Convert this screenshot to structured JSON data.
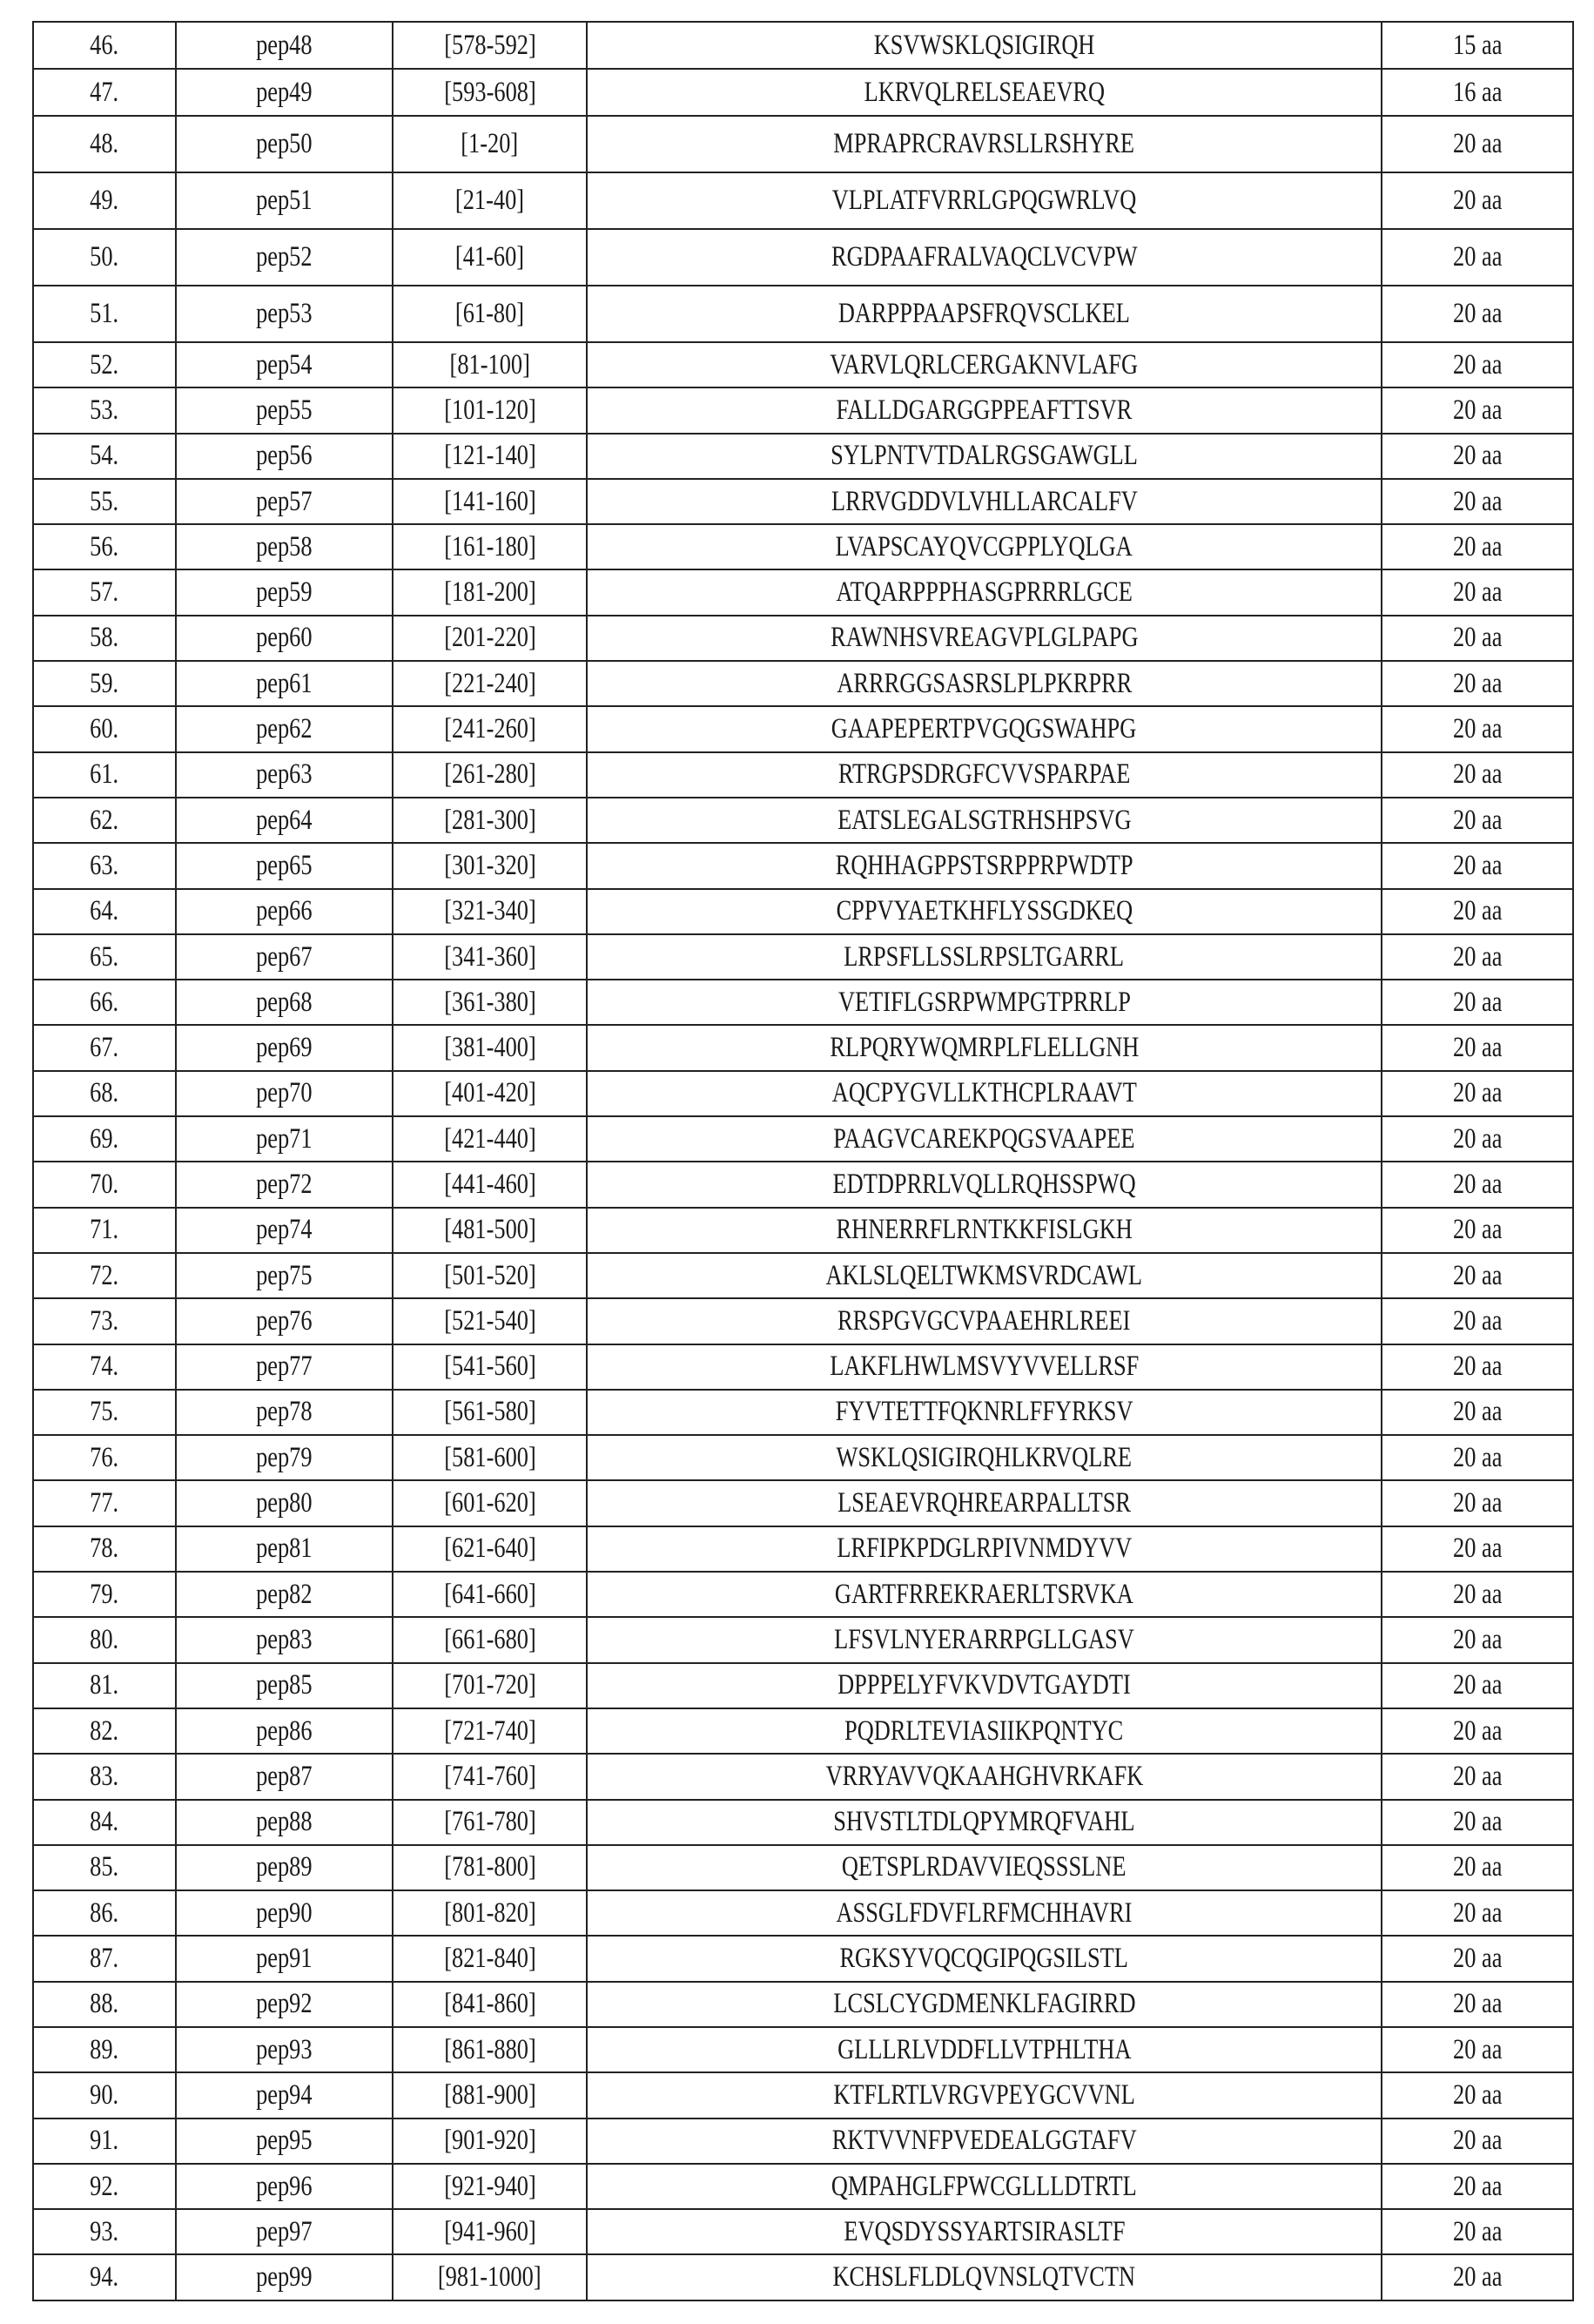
{
  "table": {
    "rows": [
      {
        "no": "46.",
        "name": "pep48",
        "range": "[578-592]",
        "seq": "KSVWSKLQSIGIRQH",
        "len": "15 aa"
      },
      {
        "no": "47.",
        "name": "pep49",
        "range": "[593-608]",
        "seq": "LKRVQLRELSEAEVRQ",
        "len": "16 aa"
      },
      {
        "no": "48.",
        "name": "pep50",
        "range": "[1-20]",
        "seq": "MPRAPRCRAVRSLLRSHYRE",
        "len": "20 aa"
      },
      {
        "no": "49.",
        "name": "pep51",
        "range": "[21-40]",
        "seq": "VLPLATFVRRLGPQGWRLVQ",
        "len": "20 aa"
      },
      {
        "no": "50.",
        "name": "pep52",
        "range": "[41-60]",
        "seq": "RGDPAAFRALVAQCLVCVPW",
        "len": "20 aa"
      },
      {
        "no": "51.",
        "name": "pep53",
        "range": "[61-80]",
        "seq": "DARPPPAAPSFRQVSCLKEL",
        "len": "20 aa"
      },
      {
        "no": "52.",
        "name": "pep54",
        "range": "[81-100]",
        "seq": "VARVLQRLCERGAKNVLAFG",
        "len": "20 aa"
      },
      {
        "no": "53.",
        "name": "pep55",
        "range": "[101-120]",
        "seq": "FALLDGARGGPPEAFTTSVR",
        "len": "20 aa"
      },
      {
        "no": "54.",
        "name": "pep56",
        "range": "[121-140]",
        "seq": "SYLPNTVTDALRGSGAWGLL",
        "len": "20 aa"
      },
      {
        "no": "55.",
        "name": "pep57",
        "range": "[141-160]",
        "seq": "LRRVGDDVLVHLLARCALFV",
        "len": "20 aa"
      },
      {
        "no": "56.",
        "name": "pep58",
        "range": "[161-180]",
        "seq": "LVAPSCAYQVCGPPLYQLGA",
        "len": "20 aa"
      },
      {
        "no": "57.",
        "name": "pep59",
        "range": "[181-200]",
        "seq": "ATQARPPPHASGPRRRLGCE",
        "len": "20 aa"
      },
      {
        "no": "58.",
        "name": "pep60",
        "range": "[201-220]",
        "seq": "RAWNHSVREAGVPLGLPAPG",
        "len": "20 aa"
      },
      {
        "no": "59.",
        "name": "pep61",
        "range": "[221-240]",
        "seq": "ARRRGGSASRSLPLPKRPRR",
        "len": "20 aa"
      },
      {
        "no": "60.",
        "name": "pep62",
        "range": "[241-260]",
        "seq": "GAAPEPERTPVGQGSWAHPG",
        "len": "20 aa"
      },
      {
        "no": "61.",
        "name": "pep63",
        "range": "[261-280]",
        "seq": "RTRGPSDRGFCVVSPARPAE",
        "len": "20 aa"
      },
      {
        "no": "62.",
        "name": "pep64",
        "range": "[281-300]",
        "seq": "EATSLEGALSGTRHSHPSVG",
        "len": "20 aa"
      },
      {
        "no": "63.",
        "name": "pep65",
        "range": "[301-320]",
        "seq": "RQHHAGPPSTSRPPRPWDTP",
        "len": "20 aa"
      },
      {
        "no": "64.",
        "name": "pep66",
        "range": "[321-340]",
        "seq": "CPPVYAETKHFLYSSGDKEQ",
        "len": "20 aa"
      },
      {
        "no": "65.",
        "name": "pep67",
        "range": "[341-360]",
        "seq": "LRPSFLLSSLRPSLTGARRL",
        "len": "20 aa"
      },
      {
        "no": "66.",
        "name": "pep68",
        "range": "[361-380]",
        "seq": "VETIFLGSRPWMPGTPRRLP",
        "len": "20 aa"
      },
      {
        "no": "67.",
        "name": "pep69",
        "range": "[381-400]",
        "seq": "RLPQRYWQMRPLFLELLGNH",
        "len": "20 aa"
      },
      {
        "no": "68.",
        "name": "pep70",
        "range": "[401-420]",
        "seq": "AQCPYGVLLKTHCPLRAAVT",
        "len": "20 aa"
      },
      {
        "no": "69.",
        "name": "pep71",
        "range": "[421-440]",
        "seq": "PAAGVCAREKPQGSVAAPEE",
        "len": "20 aa"
      },
      {
        "no": "70.",
        "name": "pep72",
        "range": "[441-460]",
        "seq": "EDTDPRRLVQLLRQHSSPWQ",
        "len": "20 aa"
      },
      {
        "no": "71.",
        "name": "pep74",
        "range": "[481-500]",
        "seq": "RHNERRFLRNTKKFISLGKH",
        "len": "20 aa"
      },
      {
        "no": "72.",
        "name": "pep75",
        "range": "[501-520]",
        "seq": "AKLSLQELTWKMSVRDCAWL",
        "len": "20 aa"
      },
      {
        "no": "73.",
        "name": "pep76",
        "range": "[521-540]",
        "seq": "RRSPGVGCVPAAEHRLREEI",
        "len": "20 aa"
      },
      {
        "no": "74.",
        "name": "pep77",
        "range": "[541-560]",
        "seq": "LAKFLHWLMSVYVVELLRSF",
        "len": "20 aa"
      },
      {
        "no": "75.",
        "name": "pep78",
        "range": "[561-580]",
        "seq": "FYVTETTFQKNRLFFYRKSV",
        "len": "20 aa"
      },
      {
        "no": "76.",
        "name": "pep79",
        "range": "[581-600]",
        "seq": "WSKLQSIGIRQHLKRVQLRE",
        "len": "20 aa"
      },
      {
        "no": "77.",
        "name": "pep80",
        "range": "[601-620]",
        "seq": "LSEAEVRQHREARPALLTSR",
        "len": "20 aa"
      },
      {
        "no": "78.",
        "name": "pep81",
        "range": "[621-640]",
        "seq": "LRFIPKPDGLRPIVNMDYVV",
        "len": "20 aa"
      },
      {
        "no": "79.",
        "name": "pep82",
        "range": "[641-660]",
        "seq": "GARTFRREKRAERLTSRVKA",
        "len": "20 aa"
      },
      {
        "no": "80.",
        "name": "pep83",
        "range": "[661-680]",
        "seq": "LFSVLNYERARRPGLLGASV",
        "len": "20 aa"
      },
      {
        "no": "81.",
        "name": "pep85",
        "range": "[701-720]",
        "seq": "DPPPELYFVKVDVTGAYDTI",
        "len": "20 aa"
      },
      {
        "no": "82.",
        "name": "pep86",
        "range": "[721-740]",
        "seq": "PQDRLTEVIASIIKPQNTYC",
        "len": "20 aa"
      },
      {
        "no": "83.",
        "name": "pep87",
        "range": "[741-760]",
        "seq": "VRRYAVVQKAAHGHVRKAFK",
        "len": "20 aa"
      },
      {
        "no": "84.",
        "name": "pep88",
        "range": "[761-780]",
        "seq": "SHVSTLTDLQPYMRQFVAHL",
        "len": "20 aa"
      },
      {
        "no": "85.",
        "name": "pep89",
        "range": "[781-800]",
        "seq": "QETSPLRDAVVIEQSSSLNE",
        "len": "20 aa"
      },
      {
        "no": "86.",
        "name": "pep90",
        "range": "[801-820]",
        "seq": "ASSGLFDVFLRFMCHHAVRI",
        "len": "20 aa"
      },
      {
        "no": "87.",
        "name": "pep91",
        "range": "[821-840]",
        "seq": "RGKSYVQCQGIPQGSILSTL",
        "len": "20 aa"
      },
      {
        "no": "88.",
        "name": "pep92",
        "range": "[841-860]",
        "seq": "LCSLCYGDMENKLFAGIRRD",
        "len": "20 aa"
      },
      {
        "no": "89.",
        "name": "pep93",
        "range": "[861-880]",
        "seq": "GLLLRLVDDFLLVTPHLTHA",
        "len": "20 aa"
      },
      {
        "no": "90.",
        "name": "pep94",
        "range": "[881-900]",
        "seq": "KTFLRTLVRGVPEYGCVVNL",
        "len": "20 aa"
      },
      {
        "no": "91.",
        "name": "pep95",
        "range": "[901-920]",
        "seq": "RKTVVNFPVEDEALGGTAFV",
        "len": "20 aa"
      },
      {
        "no": "92.",
        "name": "pep96",
        "range": "[921-940]",
        "seq": "QMPAHGLFPWCGLLLDTRTL",
        "len": "20 aa"
      },
      {
        "no": "93.",
        "name": "pep97",
        "range": "[941-960]",
        "seq": "EVQSDYSSYARTSIRASLTF",
        "len": "20 aa"
      },
      {
        "no": "94.",
        "name": "pep99",
        "range": "[981-1000]",
        "seq": "KCHSLFLDLQVNSLQTVCTN",
        "len": "20 aa"
      }
    ]
  }
}
